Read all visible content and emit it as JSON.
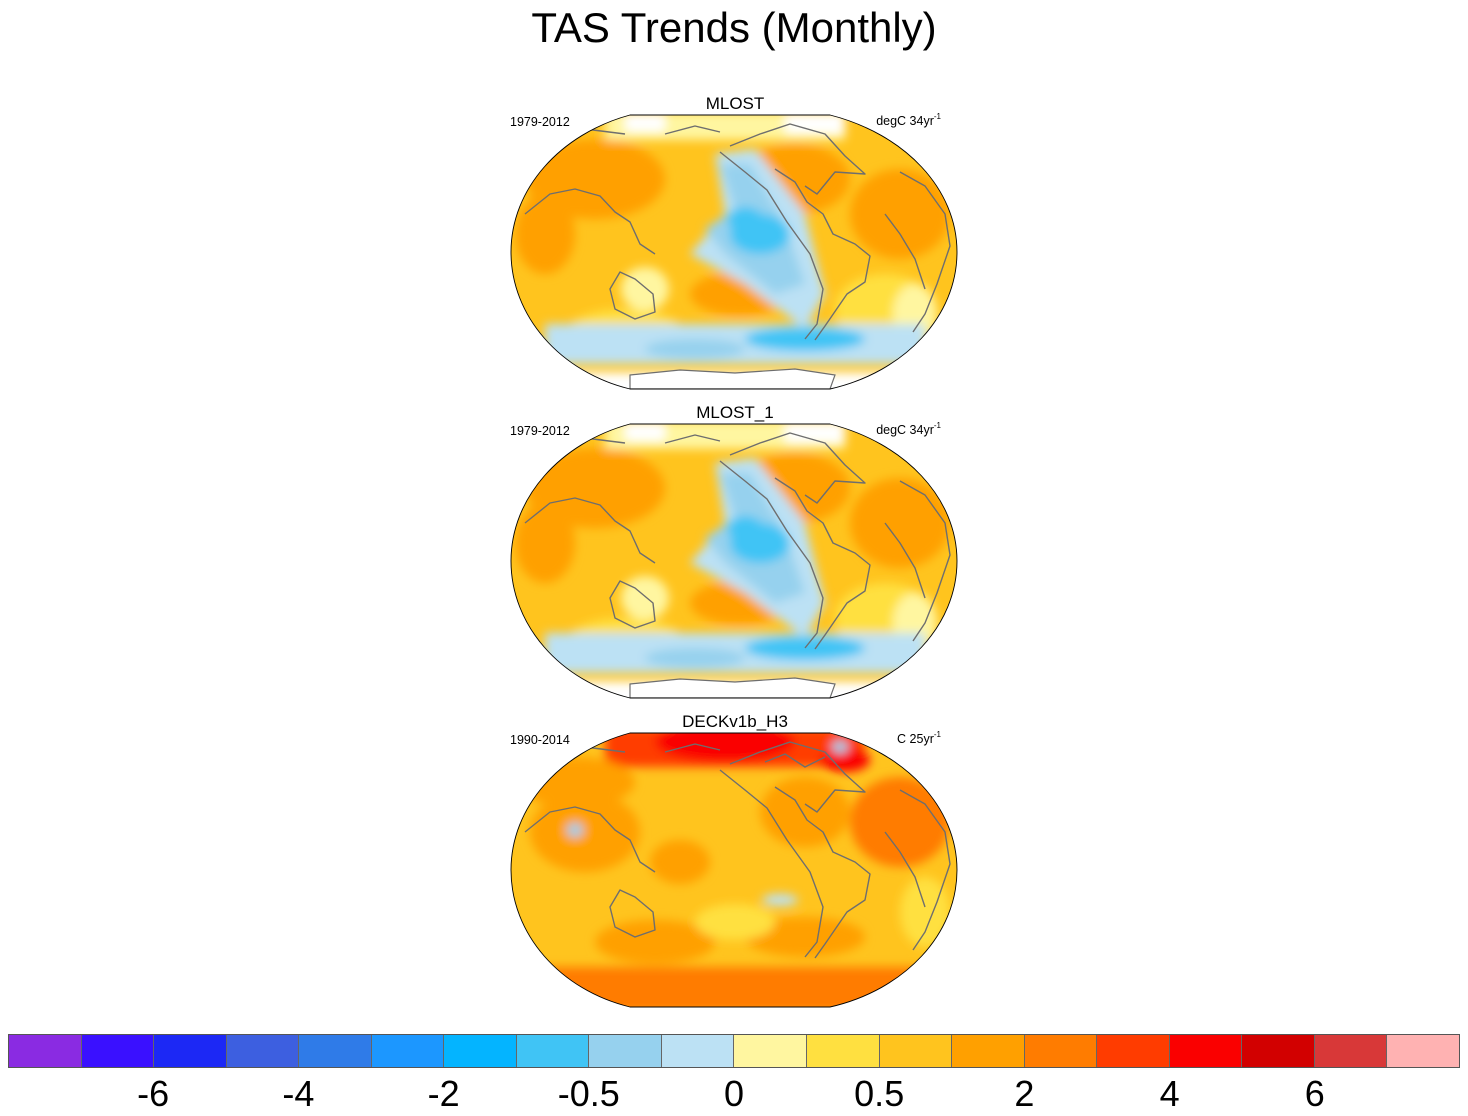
{
  "title": "TAS Trends (Monthly)",
  "panels": [
    {
      "name": "MLOST",
      "period": "1979-2012",
      "units_main": "degC 34yr",
      "units_sup": "-1",
      "variant": "cool_pacific"
    },
    {
      "name": "MLOST_1",
      "period": "1979-2012",
      "units_main": "degC 34yr",
      "units_sup": "-1",
      "variant": "cool_pacific"
    },
    {
      "name": "DECKv1b_H3",
      "period": "1990-2014",
      "units_main": "C 25yr",
      "units_sup": "-1",
      "variant": "warm_arctic"
    }
  ],
  "colorbar": {
    "colors": [
      "#8a2be2",
      "#3a10ff",
      "#1c28f5",
      "#3d5fe0",
      "#2f7be8",
      "#1c97ff",
      "#04b4ff",
      "#40c4f5",
      "#96d1ee",
      "#bce1f4",
      "#fff6a0",
      "#ffe040",
      "#ffc41e",
      "#ffa000",
      "#ff7c00",
      "#ff3c00",
      "#fa0000",
      "#d20000",
      "#d83838",
      "#ffb2b2"
    ],
    "labels": [
      {
        "text": "-6",
        "boundary": 2
      },
      {
        "text": "-4",
        "boundary": 4
      },
      {
        "text": "-2",
        "boundary": 6
      },
      {
        "text": "-0.5",
        "boundary": 8
      },
      {
        "text": "0",
        "boundary": 10
      },
      {
        "text": "0.5",
        "boundary": 12
      },
      {
        "text": "2",
        "boundary": 14
      },
      {
        "text": "4",
        "boundary": 16
      },
      {
        "text": "6",
        "boundary": 18
      }
    ]
  }
}
